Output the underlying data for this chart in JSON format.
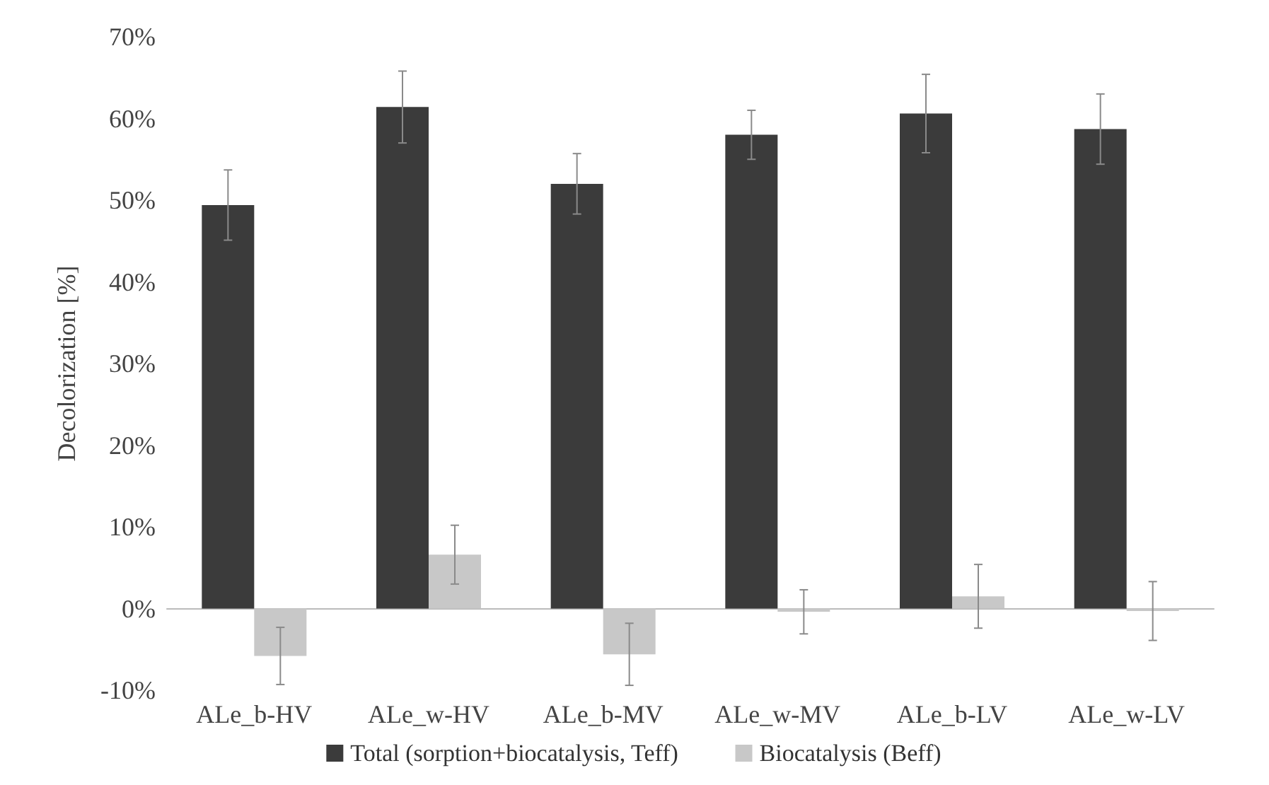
{
  "chart_data": {
    "type": "bar",
    "ylabel": "Decolorization [%]",
    "categories": [
      "ALe_b-HV",
      "ALe_w-HV",
      "ALe_b-MV",
      "ALe_w-MV",
      "ALe_b-LV",
      "ALe_w-LV"
    ],
    "series": [
      {
        "name": "Total (sorption+biocatalysis, Teff)",
        "color": "#3b3b3b",
        "values": [
          49.4,
          61.4,
          52.0,
          58.0,
          60.6,
          58.7
        ],
        "errors": [
          4.3,
          4.4,
          3.7,
          3.0,
          4.8,
          4.3
        ]
      },
      {
        "name": "Biocatalysis (Beff)",
        "color": "#c8c8c8",
        "values": [
          -5.8,
          6.6,
          -5.6,
          -0.4,
          1.5,
          -0.3
        ],
        "errors": [
          3.5,
          3.6,
          3.8,
          2.7,
          3.9,
          3.6
        ]
      }
    ],
    "ylim": [
      -10,
      70
    ],
    "yticks": [
      {
        "value": -10,
        "label": "-10%"
      },
      {
        "value": 0,
        "label": "0%"
      },
      {
        "value": 10,
        "label": "10%"
      },
      {
        "value": 20,
        "label": "20%"
      },
      {
        "value": 30,
        "label": "30%"
      },
      {
        "value": 40,
        "label": "40%"
      },
      {
        "value": 50,
        "label": "50%"
      },
      {
        "value": 60,
        "label": "60%"
      },
      {
        "value": 70,
        "label": "70%"
      }
    ],
    "legend": "bottom"
  }
}
